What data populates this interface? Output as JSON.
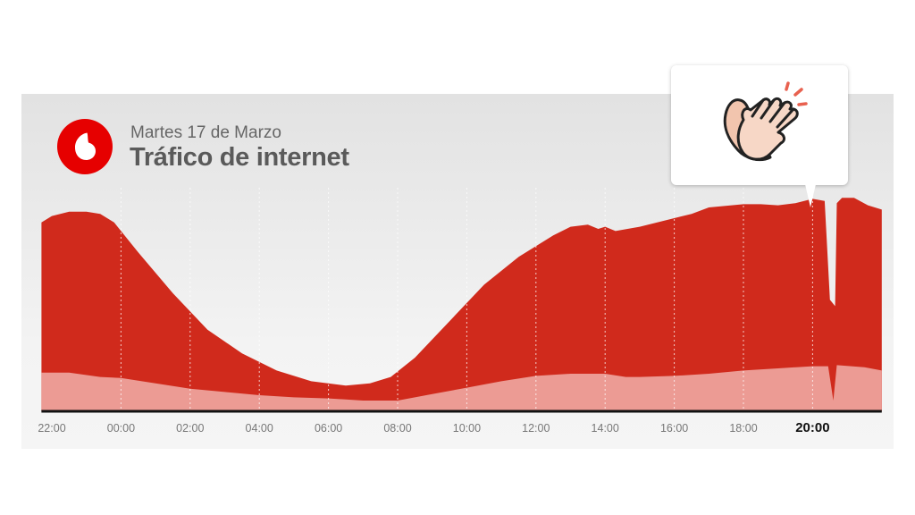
{
  "header": {
    "subtitle": "Martes 17 de Marzo",
    "title": "Tráfico de internet",
    "logo_icon": "vodafone-logo"
  },
  "callout": {
    "icon": "clapping-hands-icon"
  },
  "colors": {
    "background_top": "#e2e2e2",
    "background_bottom": "#f5f5f5",
    "total_area": "#d02a1c",
    "lower_area": "#ec9b94",
    "baseline": "#111111",
    "gridline": "#ffffff",
    "tick_text": "#777777",
    "highlight_tick_text": "#111111",
    "logo": "#e60000"
  },
  "chart_data": {
    "type": "area",
    "title": "Tráfico de internet",
    "subtitle": "Martes 17 de Marzo",
    "xlabel": "",
    "ylabel": "",
    "x_range": [
      22,
      46
    ],
    "tick_labels": [
      "22:00",
      "00:00",
      "02:00",
      "04:00",
      "06:00",
      "08:00",
      "10:00",
      "12:00",
      "14:00",
      "16:00",
      "18:00",
      "20:00"
    ],
    "tick_hours": [
      22,
      24,
      26,
      28,
      30,
      32,
      34,
      36,
      38,
      40,
      42,
      44
    ],
    "highlight_tick": "20:00",
    "grid": true,
    "ylim": [
      0,
      100
    ],
    "series": [
      {
        "role": "total",
        "points": [
          [
            21.7,
            88
          ],
          [
            22.0,
            91
          ],
          [
            22.5,
            93
          ],
          [
            23.0,
            93
          ],
          [
            23.4,
            92
          ],
          [
            23.8,
            88
          ],
          [
            24.5,
            74
          ],
          [
            25.5,
            55
          ],
          [
            26.5,
            38
          ],
          [
            27.5,
            27
          ],
          [
            28.5,
            19
          ],
          [
            29.5,
            14
          ],
          [
            30.5,
            12
          ],
          [
            31.2,
            13
          ],
          [
            31.8,
            16
          ],
          [
            32.5,
            25
          ],
          [
            33.5,
            42
          ],
          [
            34.5,
            59
          ],
          [
            35.5,
            72
          ],
          [
            36.5,
            82
          ],
          [
            37.0,
            86
          ],
          [
            37.5,
            87
          ],
          [
            37.8,
            85
          ],
          [
            38.0,
            86
          ],
          [
            38.3,
            84
          ],
          [
            39.0,
            86
          ],
          [
            40.0,
            90
          ],
          [
            40.5,
            92
          ],
          [
            41.0,
            95
          ],
          [
            42.0,
            96.5
          ],
          [
            42.5,
            96.5
          ],
          [
            43.0,
            96
          ],
          [
            43.5,
            97
          ],
          [
            44.0,
            99
          ],
          [
            44.35,
            98
          ],
          [
            44.5,
            52
          ],
          [
            44.65,
            49
          ],
          [
            44.7,
            97
          ],
          [
            44.85,
            99.5
          ],
          [
            45.2,
            99.5
          ],
          [
            45.6,
            96
          ],
          [
            46.0,
            94
          ]
        ]
      },
      {
        "role": "lower",
        "points": [
          [
            21.7,
            18
          ],
          [
            22.5,
            18
          ],
          [
            23.4,
            16
          ],
          [
            24.0,
            15.5
          ],
          [
            25.0,
            13
          ],
          [
            26.0,
            10.5
          ],
          [
            27.0,
            9
          ],
          [
            28.0,
            7.5
          ],
          [
            29.0,
            6.5
          ],
          [
            30.0,
            6
          ],
          [
            31.0,
            5
          ],
          [
            32.0,
            5
          ],
          [
            33.0,
            8
          ],
          [
            34.0,
            11
          ],
          [
            35.0,
            14
          ],
          [
            36.0,
            16.5
          ],
          [
            37.0,
            17.5
          ],
          [
            38.0,
            17.5
          ],
          [
            38.6,
            16
          ],
          [
            39.0,
            16
          ],
          [
            40.0,
            16.5
          ],
          [
            41.0,
            17.5
          ],
          [
            42.0,
            19
          ],
          [
            43.0,
            20
          ],
          [
            44.0,
            21
          ],
          [
            44.45,
            21
          ],
          [
            44.6,
            5
          ],
          [
            44.7,
            21.5
          ],
          [
            45.5,
            20.5
          ],
          [
            46.0,
            19
          ]
        ]
      }
    ]
  }
}
